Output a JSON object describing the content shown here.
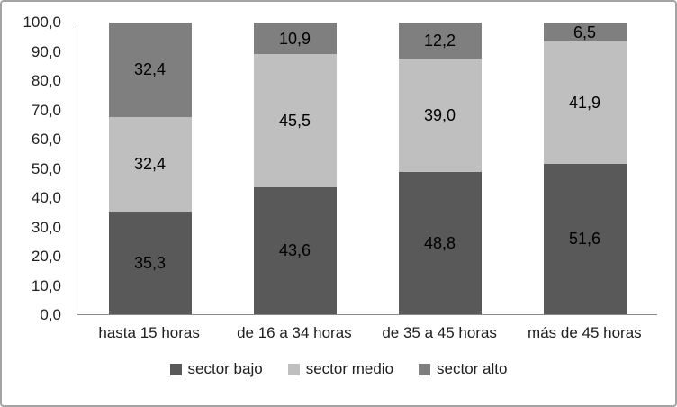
{
  "chart_data": {
    "type": "bar",
    "subtype": "stacked-100-percent",
    "title": "",
    "xlabel": "",
    "ylabel": "",
    "categories": [
      "hasta 15 horas",
      "de 16 a 34 horas",
      "de 35 a 45 horas",
      "más de 45 horas"
    ],
    "series": [
      {
        "name": "sector bajo",
        "color": "#595959",
        "values": [
          35.3,
          43.6,
          48.8,
          51.6
        ],
        "labels": [
          "35,3",
          "43,6",
          "48,8",
          "51,6"
        ]
      },
      {
        "name": "sector medio",
        "color": "#bfbfbf",
        "values": [
          32.4,
          45.5,
          39.0,
          41.9
        ],
        "labels": [
          "32,4",
          "45,5",
          "39,0",
          "41,9"
        ]
      },
      {
        "name": "sector alto",
        "color": "#7f7f7f",
        "values": [
          32.4,
          10.9,
          12.2,
          6.5
        ],
        "labels": [
          "32,4",
          "10,9",
          "12,2",
          "6,5"
        ]
      }
    ],
    "y_axis": {
      "min": 0,
      "max": 100,
      "step": 10,
      "tick_labels": [
        "0,0",
        "10,0",
        "20,0",
        "30,0",
        "40,0",
        "50,0",
        "60,0",
        "70,0",
        "80,0",
        "90,0",
        "100,0"
      ]
    },
    "grid": false,
    "legend_position": "bottom",
    "axis_line_color": "#898989",
    "data_label_color": "#000000",
    "frame_border_color": "#a3a3a3"
  }
}
